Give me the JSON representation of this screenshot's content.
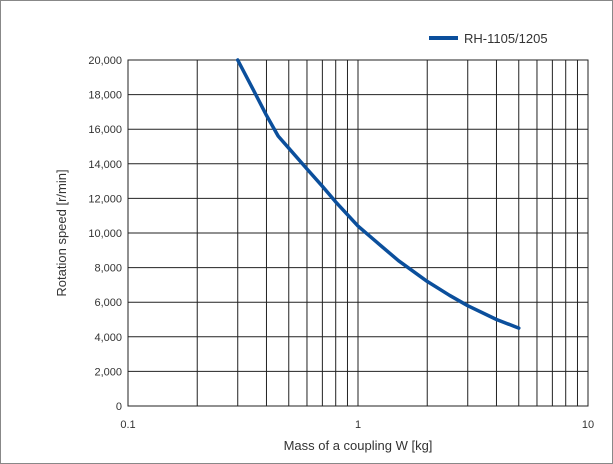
{
  "chart_data": {
    "type": "line",
    "x_scale": "log",
    "y_scale": "linear",
    "xlim": [
      0.1,
      10
    ],
    "ylim": [
      0,
      20000
    ],
    "x_ticks": [
      0.1,
      1,
      10
    ],
    "x_tick_labels": [
      "0.1",
      "1",
      "10"
    ],
    "y_ticks": [
      0,
      2000,
      4000,
      6000,
      8000,
      10000,
      12000,
      14000,
      16000,
      18000,
      20000
    ],
    "y_tick_labels": [
      "0",
      "2,000",
      "4,000",
      "6,000",
      "8,000",
      "10,000",
      "12,000",
      "14,000",
      "16,000",
      "18,000",
      "20,000"
    ],
    "xlabel": "Mass of a coupling W [kg]",
    "ylabel": "Rotation speed [r/min]",
    "grid": true,
    "legend_position": "top-right",
    "series": [
      {
        "name": "RH-1105/1205",
        "color": "#0b4f9c",
        "x": [
          0.3,
          0.35,
          0.4,
          0.45,
          0.5,
          0.6,
          0.7,
          0.8,
          1.0,
          1.2,
          1.5,
          2.0,
          2.5,
          3.0,
          4.0,
          5.0
        ],
        "y": [
          20000,
          18300,
          16800,
          15600,
          14900,
          13700,
          12700,
          11800,
          10400,
          9500,
          8400,
          7200,
          6400,
          5800,
          5000,
          4500
        ]
      }
    ]
  }
}
